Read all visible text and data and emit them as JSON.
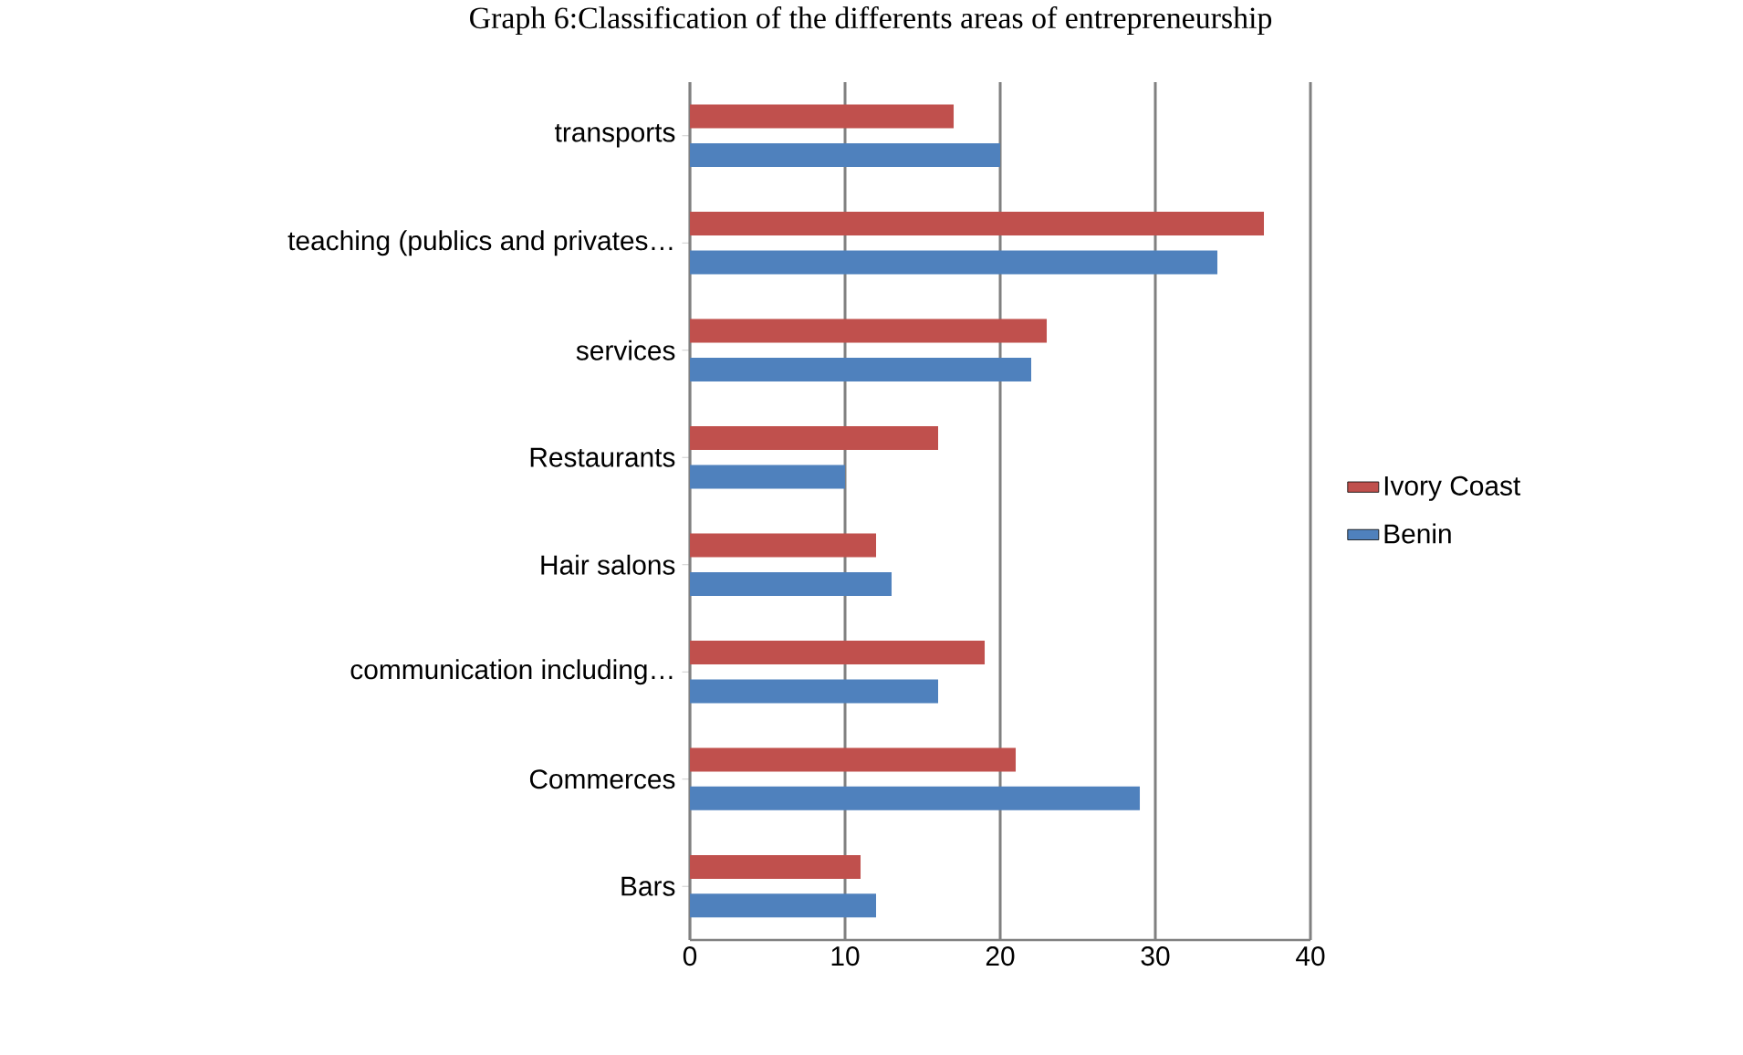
{
  "chart_data": {
    "type": "bar",
    "orientation": "horizontal",
    "title": "Graph 6:Classification of the differents areas of entrepreneurship",
    "categories": [
      "transports",
      "teaching (publics and privates…",
      "services",
      "Restaurants",
      "Hair salons",
      "communication including…",
      "Commerces",
      "Bars"
    ],
    "series": [
      {
        "name": "Ivory Coast",
        "color": "#c0504d",
        "values": [
          17,
          37,
          23,
          16,
          12,
          19,
          21,
          11
        ]
      },
      {
        "name": "Benin",
        "color": "#4f81bd",
        "values": [
          20,
          34,
          22,
          10,
          13,
          16,
          29,
          12
        ]
      }
    ],
    "xlim": [
      0,
      40
    ],
    "xticks": [
      0,
      10,
      20,
      30,
      40
    ],
    "grid": "x",
    "legend": "right"
  }
}
